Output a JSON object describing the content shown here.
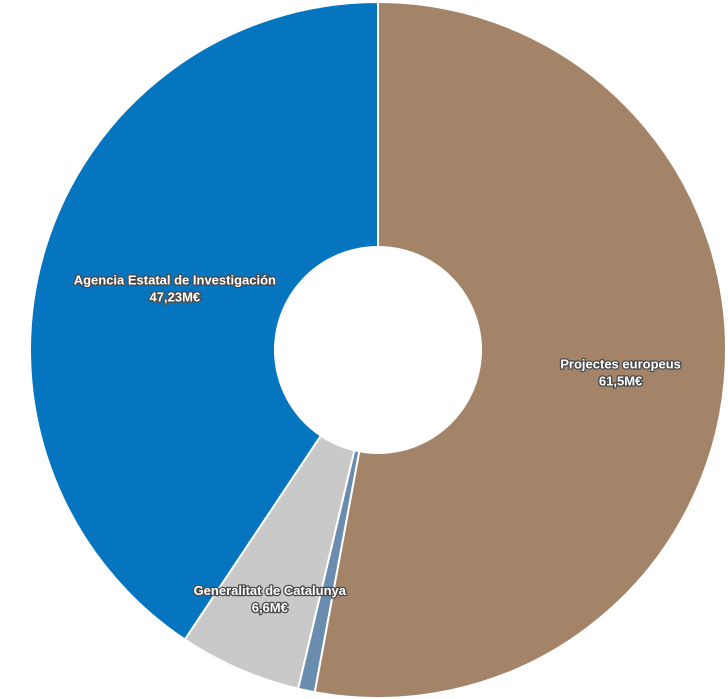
{
  "chart_data": {
    "type": "pie",
    "variant": "donut",
    "title": "",
    "legend": "none",
    "slices": [
      {
        "name": "Projectes europeus",
        "value": 61.5,
        "value_label": "61,5M€",
        "color": "#a38468"
      },
      {
        "name": "",
        "value": 0.9,
        "value_label": "",
        "color": "#6a8caf"
      },
      {
        "name": "Generalitat de Catalunya",
        "value": 6.6,
        "value_label": "6,6M€",
        "color": "#c9c9c9"
      },
      {
        "name": "Agencia Estatal de Investigación",
        "value": 47.23,
        "value_label": "47,23M€",
        "color": "#0575bf"
      }
    ]
  }
}
